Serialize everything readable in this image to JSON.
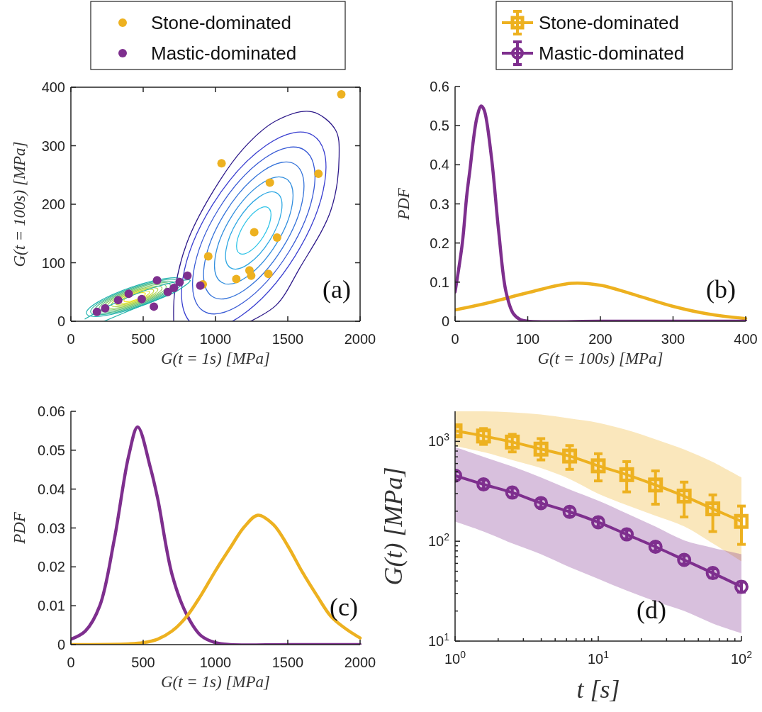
{
  "chart_data": [
    {
      "type": "scatter",
      "xlabel": "G(t = 1s) [MPa]",
      "ylabel": "G(t = 100s) [MPa]",
      "xlim": [
        0,
        2000
      ],
      "ylim": [
        0,
        400
      ],
      "xticks": [
        0,
        500,
        1000,
        1500,
        2000
      ],
      "yticks": [
        0,
        100,
        200,
        300,
        400
      ],
      "legend": "top",
      "annotations": [
        "(a)"
      ],
      "series": [
        {
          "type": "line",
          "color": "#2e1a8a",
          "x": [
            711,
            719,
            801,
            964,
            1193,
            1422,
            1667,
            1830,
            1855,
            1797,
            1585,
            1422,
            1242
          ],
          "values": [
            0,
            52,
            133,
            214,
            295,
            343,
            358,
            327,
            282,
            189,
            92,
            28,
            0
          ]
        },
        {
          "type": "line",
          "color": "#20b2aa",
          "x": [
            98,
            278,
            604,
            825,
            735,
            441,
            229
          ],
          "values": [
            4,
            28,
            60,
            70,
            52,
            22,
            0
          ]
        },
        {
          "name": "Stone-dominated",
          "type": "scatter",
          "marker": "circle",
          "color": "#edb120",
          "x": [
            1870,
            1042,
            1712,
            1376,
            1268,
            1426,
            950,
            1235,
            1247,
            1144,
            1366,
            912
          ],
          "values": [
            388,
            270,
            252,
            237,
            152,
            143,
            111,
            87,
            78,
            72,
            81,
            63
          ]
        },
        {
          "name": "Mastic-dominated",
          "type": "scatter",
          "marker": "circle",
          "color": "#7e2f8e",
          "x": [
            596,
            806,
            895,
            752,
            713,
            574,
            400,
            180,
            237,
            327,
            490,
            670
          ],
          "values": [
            70,
            78,
            61,
            67,
            57,
            25,
            47,
            16,
            22,
            36,
            38,
            50
          ]
        }
      ]
    },
    {
      "type": "line",
      "xlabel": "G(t = 100s) [MPa]",
      "ylabel": "PDF",
      "xlim": [
        0,
        400
      ],
      "ylim": [
        0,
        0.6
      ],
      "xticks": [
        0,
        100,
        200,
        300,
        400
      ],
      "yticks": [
        0,
        0.1,
        0.2,
        0.3,
        0.4,
        0.5,
        0.6
      ],
      "annotations": [
        "(b)"
      ],
      "series": [
        {
          "color": "#edb120",
          "x": [
            0,
            50,
            100,
            160,
            200,
            250,
            300,
            350,
            400
          ],
          "values": [
            0.029,
            0.049,
            0.073,
            0.097,
            0.092,
            0.066,
            0.038,
            0.018,
            0.007
          ]
        },
        {
          "color": "#7e2f8e",
          "x": [
            0,
            10,
            16,
            20,
            30,
            36,
            40,
            50,
            60,
            70,
            80,
            90,
            100,
            200,
            300,
            400
          ],
          "values": [
            0.075,
            0.2,
            0.32,
            0.38,
            0.52,
            0.55,
            0.54,
            0.42,
            0.23,
            0.076,
            0.02,
            0.004,
            0,
            0,
            0,
            0
          ]
        }
      ]
    },
    {
      "type": "line",
      "xlabel": "G(t = 1s) [MPa]",
      "ylabel": "PDF",
      "xlim": [
        0,
        2000
      ],
      "ylim": [
        0,
        0.06
      ],
      "xticks": [
        0,
        500,
        1000,
        1500,
        2000
      ],
      "yticks": [
        0,
        0.01,
        0.02,
        0.03,
        0.04,
        0.05,
        0.06
      ],
      "annotations": [
        "(c)"
      ],
      "series": [
        {
          "color": "#7e2f8e",
          "x": [
            0,
            100,
            200,
            300,
            400,
            462,
            550,
            600,
            700,
            800,
            900,
            1000,
            1100,
            1500,
            2000
          ],
          "values": [
            0.0014,
            0.0035,
            0.01,
            0.027,
            0.0486,
            0.056,
            0.0455,
            0.0376,
            0.018,
            0.0078,
            0.0023,
            0.0005,
            0,
            0,
            0
          ]
        },
        {
          "color": "#edb120",
          "x": [
            0,
            400,
            500,
            600,
            700,
            800,
            900,
            1000,
            1100,
            1200,
            1293,
            1400,
            1500,
            1600,
            1700,
            1800,
            1900,
            2000
          ],
          "values": [
            0,
            0.0002,
            0.0005,
            0.0014,
            0.0035,
            0.0072,
            0.0127,
            0.019,
            0.0248,
            0.0303,
            0.0333,
            0.0309,
            0.0254,
            0.0187,
            0.0127,
            0.0072,
            0.0041,
            0.0017
          ]
        }
      ]
    },
    {
      "type": "line",
      "xlabel": "t [s]",
      "ylabel": "G(t) [MPa]",
      "log": "xy",
      "xlim": [
        1,
        100
      ],
      "ylim": [
        10,
        2000
      ],
      "legend": "top",
      "annotations": [
        "(d)"
      ],
      "xticks": [
        {
          "value": 1,
          "label": "10$^{0}$"
        },
        {
          "value": 2,
          "label": null
        },
        {
          "value": 3,
          "label": null
        },
        {
          "value": 4,
          "label": null
        },
        {
          "value": 5,
          "label": null
        },
        {
          "value": 6,
          "label": null
        },
        {
          "value": 7,
          "label": null
        },
        {
          "value": 8,
          "label": null
        },
        {
          "value": 9,
          "label": null
        },
        {
          "value": 10,
          "label": "10$^{1}$"
        },
        {
          "value": 20,
          "label": null
        },
        {
          "value": 30,
          "label": null
        },
        {
          "value": 40,
          "label": null
        },
        {
          "value": 50,
          "label": null
        },
        {
          "value": 60,
          "label": null
        },
        {
          "value": 70,
          "label": null
        },
        {
          "value": 80,
          "label": null
        },
        {
          "value": 90,
          "label": null
        },
        {
          "value": 100,
          "label": "10$^{2}$"
        }
      ],
      "yticks": [
        {
          "value": 10,
          "label": "10$^{1}$"
        },
        {
          "value": 20,
          "label": null
        },
        {
          "value": 30,
          "label": null
        },
        {
          "value": 40,
          "label": null
        },
        {
          "value": 50,
          "label": null
        },
        {
          "value": 60,
          "label": null
        },
        {
          "value": 70,
          "label": null
        },
        {
          "value": 80,
          "label": null
        },
        {
          "value": 90,
          "label": null
        },
        {
          "value": 100,
          "label": "10$^{2}$"
        },
        {
          "value": 200,
          "label": null
        },
        {
          "value": 300,
          "label": null
        },
        {
          "value": 400,
          "label": null
        },
        {
          "value": 500,
          "label": null
        },
        {
          "value": 600,
          "label": null
        },
        {
          "value": 700,
          "label": null
        },
        {
          "value": 800,
          "label": null
        },
        {
          "value": 900,
          "label": null
        },
        {
          "value": 1000,
          "label": "10$^{3}$"
        }
      ],
      "x": [
        1,
        1.58,
        2.51,
        3.98,
        6.31,
        10,
        15.8,
        25.1,
        39.8,
        63.1,
        100
      ],
      "series": [
        {
          "name": "Stone-dominated",
          "color": "#edb120",
          "marker": "square",
          "values": [
            1274,
            1131,
            984,
            837,
            713,
            569,
            464,
            366,
            283,
            211,
            158
          ],
          "errors": [
            [
              1143,
              1402
            ],
            [
              933,
              1344
            ],
            [
              785,
              1175
            ],
            [
              652,
              1066
            ],
            [
              525,
              908
            ],
            [
              402,
              752
            ],
            [
              312,
              627
            ],
            [
              235,
              506
            ],
            [
              175,
              391
            ],
            [
              125,
              291
            ],
            [
              93,
              225
            ]
          ],
          "lower": [
            898,
            780,
            650,
            540,
            420,
            299,
            230,
            180,
            141,
            95,
            63
          ],
          "upper": [
            2000,
            2000,
            1950,
            1855,
            1700,
            1536,
            1300,
            1050,
            829,
            620,
            436
          ]
        },
        {
          "name": "Mastic-dominated",
          "color": "#7e2f8e",
          "marker": "circle",
          "values": [
            454,
            371,
            307,
            241,
            197,
            155,
            117,
            88,
            65,
            48,
            35
          ],
          "errors": [
            [
              410,
              500
            ],
            [
              335,
              410
            ],
            [
              277,
              340
            ],
            [
              218,
              266
            ],
            [
              178,
              218
            ],
            [
              140,
              171
            ],
            [
              106,
              129
            ],
            [
              80,
              97
            ],
            [
              59,
              72
            ],
            [
              43,
              53
            ],
            [
              31,
              39
            ]
          ],
          "lower": [
            157,
            125,
            95,
            74,
            55,
            42,
            32,
            25,
            20,
            15,
            12
          ],
          "upper": [
            875,
            700,
            560,
            436,
            330,
            255,
            190,
            140,
            102,
            86,
            74
          ]
        }
      ]
    }
  ]
}
